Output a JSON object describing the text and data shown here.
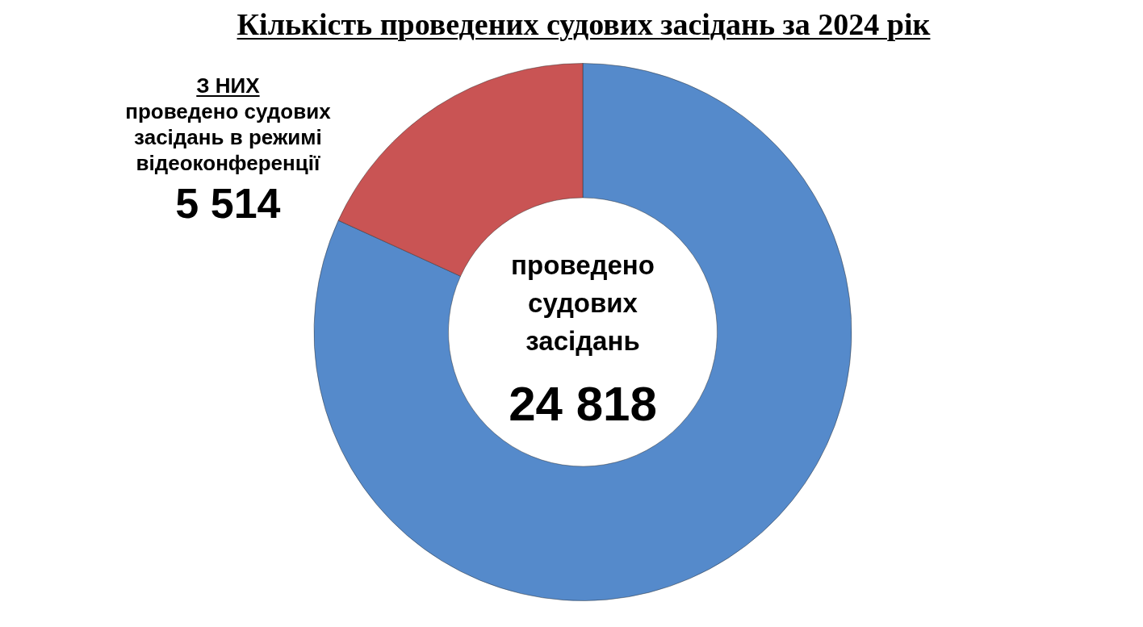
{
  "chart_data": {
    "type": "donut",
    "title": "Кількість проведених судових засідань за 2024 рік",
    "categories": [
      "проведено судових засідань",
      "З НИХ\nпроведено судових засідань в режимі відеоконференції"
    ],
    "values": [
      24818,
      5514
    ],
    "colors": [
      "#558acb",
      "#c95454"
    ],
    "value_labels": [
      "24 818",
      "5 514"
    ]
  }
}
